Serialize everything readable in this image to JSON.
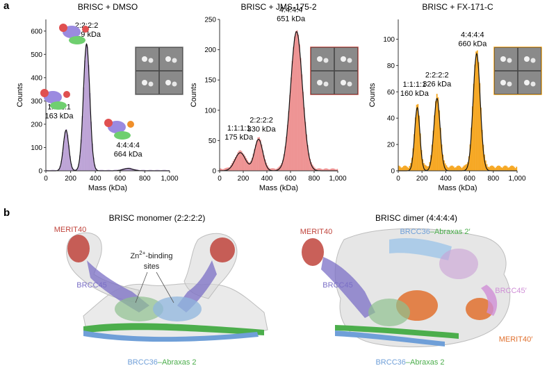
{
  "panel_a_letter": "a",
  "panel_b_letter": "b",
  "chart_data": [
    {
      "type": "histogram",
      "title": "BRISC + DMSO",
      "xlabel": "Mass (kDa)",
      "ylabel": "Counts",
      "xlim": [
        0,
        1000
      ],
      "ylim": [
        0,
        650
      ],
      "xticks": [
        "0",
        "200",
        "400",
        "600",
        "800",
        "1,000"
      ],
      "yticks": [
        "0",
        "100",
        "200",
        "300",
        "400",
        "500",
        "600"
      ],
      "xtick_values": [
        0,
        200,
        400,
        600,
        800,
        1000
      ],
      "ytick_values": [
        0,
        100,
        200,
        300,
        400,
        500,
        600
      ],
      "color": "#b79bd3",
      "peaks": [
        {
          "stoich": "1:1:1:1",
          "mass": "163 kDa",
          "x": 163,
          "height": 175,
          "sigma": 22
        },
        {
          "stoich": "2:2:2:2",
          "mass": "329 kDa",
          "x": 329,
          "height": 545,
          "sigma": 26
        },
        {
          "stoich": "4:4:4:4",
          "mass": "664 kDa",
          "x": 664,
          "height": 10,
          "sigma": 40
        }
      ]
    },
    {
      "type": "histogram",
      "title": "BRISC + JMS-175-2",
      "xlabel": "Mass (kDa)",
      "ylabel": "Counts",
      "xlim": [
        0,
        1000
      ],
      "ylim": [
        0,
        250
      ],
      "xticks": [
        "0",
        "200",
        "400",
        "600",
        "800",
        "1,000"
      ],
      "yticks": [
        "0",
        "50",
        "100",
        "150",
        "200",
        "250"
      ],
      "xtick_values": [
        0,
        200,
        400,
        600,
        800,
        1000
      ],
      "ytick_values": [
        0,
        50,
        100,
        150,
        200,
        250
      ],
      "color": "#ec8a8a",
      "peaks": [
        {
          "stoich": "1:1:1:1",
          "mass": "175 kDa",
          "x": 175,
          "height": 30,
          "sigma": 45
        },
        {
          "stoich": "2:2:2:2",
          "mass": "330 kDa",
          "x": 330,
          "height": 52,
          "sigma": 35
        },
        {
          "stoich": "4:4:4:4",
          "mass": "651 kDa",
          "x": 651,
          "height": 230,
          "sigma": 50
        }
      ]
    },
    {
      "type": "histogram",
      "title": "BRISC + FX-171-C",
      "xlabel": "Mass (kDa)",
      "ylabel": "Counts",
      "xlim": [
        0,
        1000
      ],
      "ylim": [
        0,
        115
      ],
      "xticks": [
        "0",
        "200",
        "400",
        "600",
        "800",
        "1,000"
      ],
      "yticks": [
        "0",
        "20",
        "40",
        "60",
        "80",
        "100"
      ],
      "xtick_values": [
        0,
        200,
        400,
        600,
        800,
        1000
      ],
      "ytick_values": [
        0,
        20,
        40,
        60,
        80,
        100
      ],
      "color": "#f5a00f",
      "peaks": [
        {
          "stoich": "1:1:1:1",
          "mass": "160 kDa",
          "x": 160,
          "height": 48,
          "sigma": 22
        },
        {
          "stoich": "2:2:2:2",
          "mass": "326 kDa",
          "x": 326,
          "height": 55,
          "sigma": 26
        },
        {
          "stoich": "4:4:4:4",
          "mass": "660 kDa",
          "x": 660,
          "height": 89,
          "sigma": 30
        }
      ]
    }
  ],
  "structures": [
    {
      "title": "BRISC monomer (2:2:2:2)",
      "labels": {
        "merit40": "MERIT40",
        "brcc45": "BRCC45",
        "zn_line1": "Zn",
        "zn_sup": "2+",
        "zn_line1_rest": "-binding",
        "zn_line2": "sites",
        "bottom_a": "BRCC36",
        "bottom_b": "–Abraxas 2"
      }
    },
    {
      "title": "BRISC dimer (4:4:4:4)",
      "labels": {
        "merit40": "MERIT40",
        "brcc45": "BRCC45",
        "top_a": "BRCC36",
        "top_b": "–Abraxas 2′",
        "brcc45p": "BRCC45′",
        "merit40p": "MERIT40′",
        "bottom_a": "BRCC36",
        "bottom_b": "–Abraxas 2"
      }
    }
  ],
  "colors": {
    "merit40": "#c0443c",
    "brcc45": "#7b6fc6",
    "brcc36": "#6f9fd8",
    "abraxas": "#4cae4c",
    "brcc45p": "#cf8fd6",
    "merit40p": "#e0702e",
    "density": "#cfcfcf"
  }
}
